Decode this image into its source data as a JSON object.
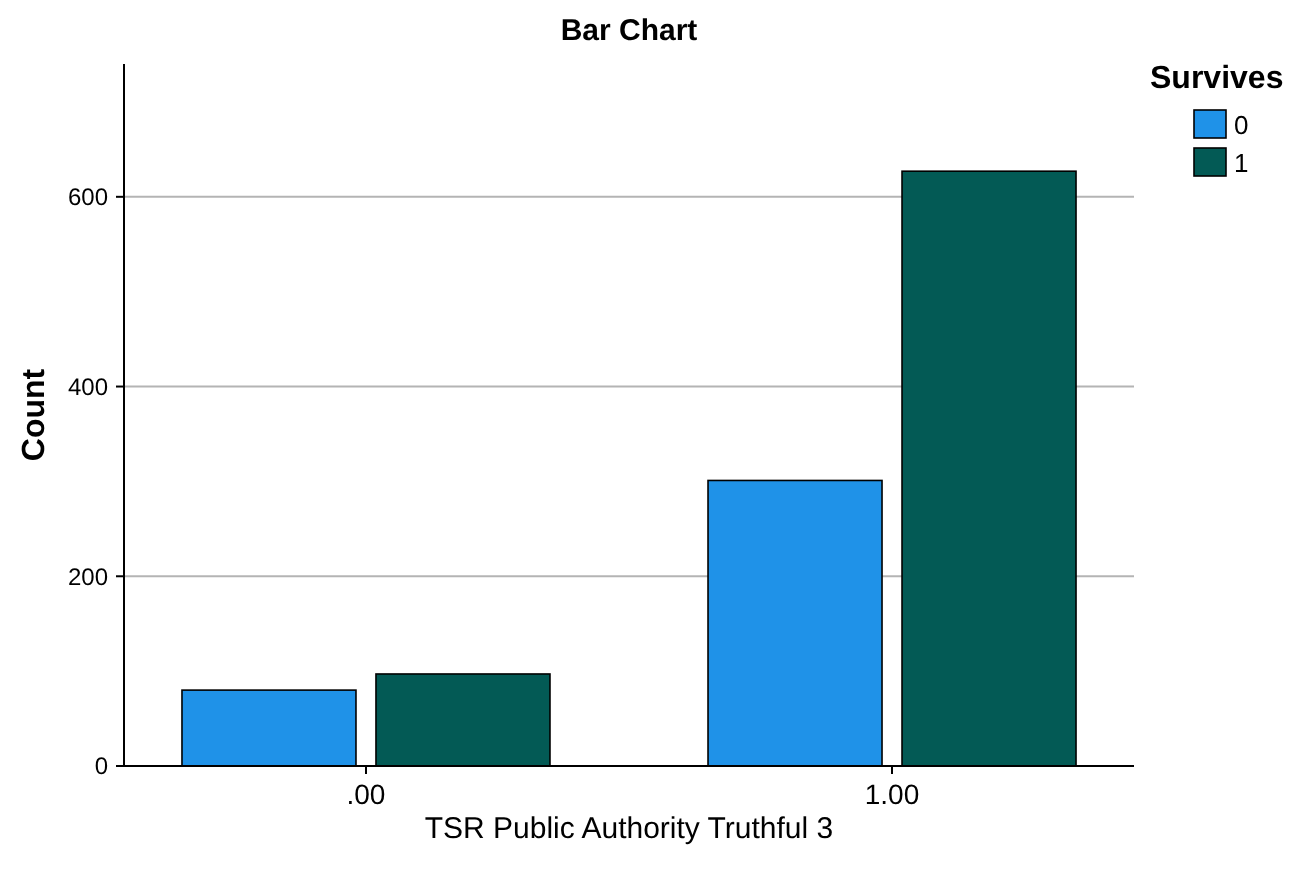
{
  "chart_data": {
    "type": "bar",
    "title": "Bar Chart",
    "xlabel": "TSR Public Authority Truthful 3",
    "ylabel": "Count",
    "legend_title": "Survives",
    "categories": [
      ".00",
      "1.00"
    ],
    "series": [
      {
        "name": "0",
        "color": "#1f92e8",
        "values": [
          80,
          301
        ]
      },
      {
        "name": "1",
        "color": "#035a55",
        "values": [
          97,
          627
        ]
      }
    ],
    "ylim": [
      0,
      740
    ],
    "yticks": [
      0,
      200,
      400,
      600
    ],
    "grid": "y",
    "legend": "top right"
  }
}
